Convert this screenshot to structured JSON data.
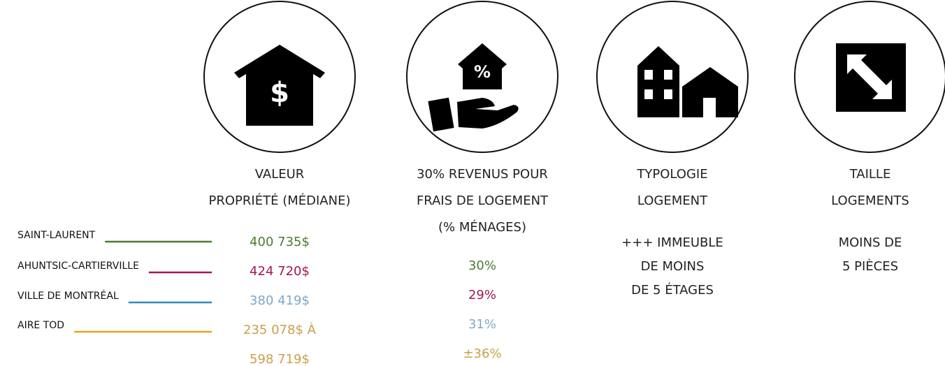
{
  "legend": [
    {
      "label": "SAINT-LAURENT",
      "color": "#4a7c2f"
    },
    {
      "label": "AHUNTSIC-CARTIERVILLE",
      "color": "#a0175a"
    },
    {
      "label": "VILLE DE MONTRÉAL",
      "color": "#2e8bc0"
    },
    {
      "label": "AIRE TOD",
      "color": "#e8a317"
    }
  ],
  "columns": [
    {
      "icon_label": "$",
      "title": [
        "VALEUR",
        "PROPRIÉTÉ (MÉDIANE)"
      ],
      "values": [
        {
          "text": "400 735$",
          "color": "#4a7c2f"
        },
        {
          "text": "424 720$",
          "color": "#a0175a"
        },
        {
          "text": "380 419$",
          "color": "#7fa8c9"
        },
        {
          "text": "235 078$ À",
          "color": "#c9a04a"
        },
        {
          "text": "598 719$",
          "color": "#c9a04a"
        }
      ]
    },
    {
      "icon_label": "%",
      "title": [
        "30% REVENUS POUR",
        "FRAIS DE LOGEMENT",
        "(% MÉNAGES)"
      ],
      "values": [
        {
          "text": "30%",
          "color": "#4a7c2f"
        },
        {
          "text": "29%",
          "color": "#a0175a"
        },
        {
          "text": "31%",
          "color": "#7fa8c9"
        },
        {
          "text": "±36%",
          "color": "#c9a04a"
        }
      ]
    },
    {
      "title": [
        "TYPOLOGIE",
        "LOGEMENT"
      ],
      "values": [
        {
          "text": "+++ IMMEUBLE",
          "color": "#222222"
        },
        {
          "text": "DE MOINS",
          "color": "#222222"
        },
        {
          "text": "DE 5 ÉTAGES",
          "color": "#222222"
        }
      ]
    },
    {
      "title": [
        "TAILLE",
        "LOGEMENTS"
      ],
      "values": [
        {
          "text": "MOINS DE",
          "color": "#222222"
        },
        {
          "text": "5 PIÈCES",
          "color": "#222222"
        }
      ]
    }
  ]
}
